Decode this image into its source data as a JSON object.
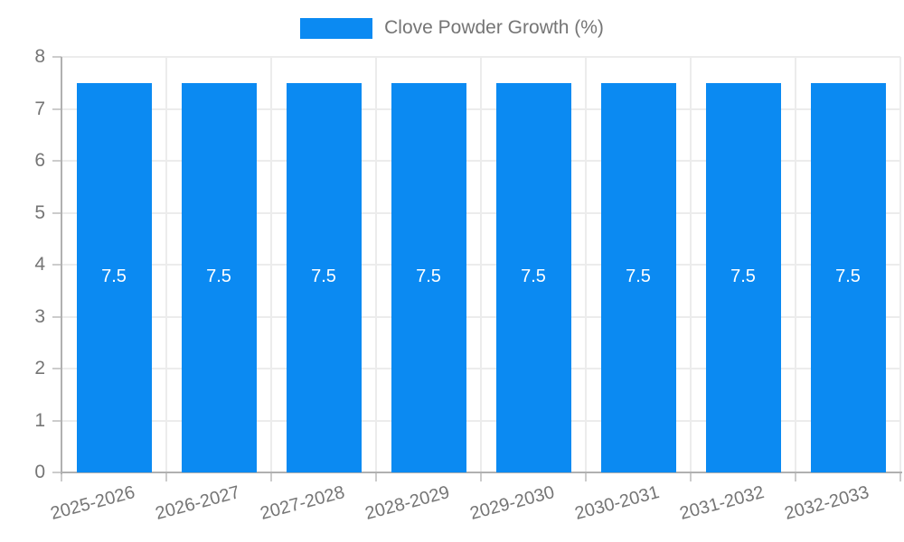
{
  "legend": {
    "label": "Clove Powder Growth (%)"
  },
  "colors": {
    "bar": "#0b8af2",
    "grid": "#ececec",
    "axis": "#b0b0b0",
    "tick": "#cccccc",
    "axis_text": "#757575",
    "value_label": "#ffffff",
    "background": "#ffffff"
  },
  "chart_data": {
    "type": "bar",
    "title": "",
    "series_name": "Clove Powder Growth (%)",
    "categories": [
      "2025-2026",
      "2026-2027",
      "2027-2028",
      "2028-2029",
      "2029-2030",
      "2030-2031",
      "2031-2032",
      "2032-2033"
    ],
    "values": [
      7.5,
      7.5,
      7.5,
      7.5,
      7.5,
      7.5,
      7.5,
      7.5
    ],
    "bar_labels": [
      "7.5",
      "7.5",
      "7.5",
      "7.5",
      "7.5",
      "7.5",
      "7.5",
      "7.5"
    ],
    "xlabel": "",
    "ylabel": "",
    "ylim": [
      0,
      8
    ],
    "yticks": [
      0,
      1,
      2,
      3,
      4,
      5,
      6,
      7,
      8
    ],
    "grid": true,
    "legend_position": "top",
    "x_label_rotation_deg": -15
  }
}
